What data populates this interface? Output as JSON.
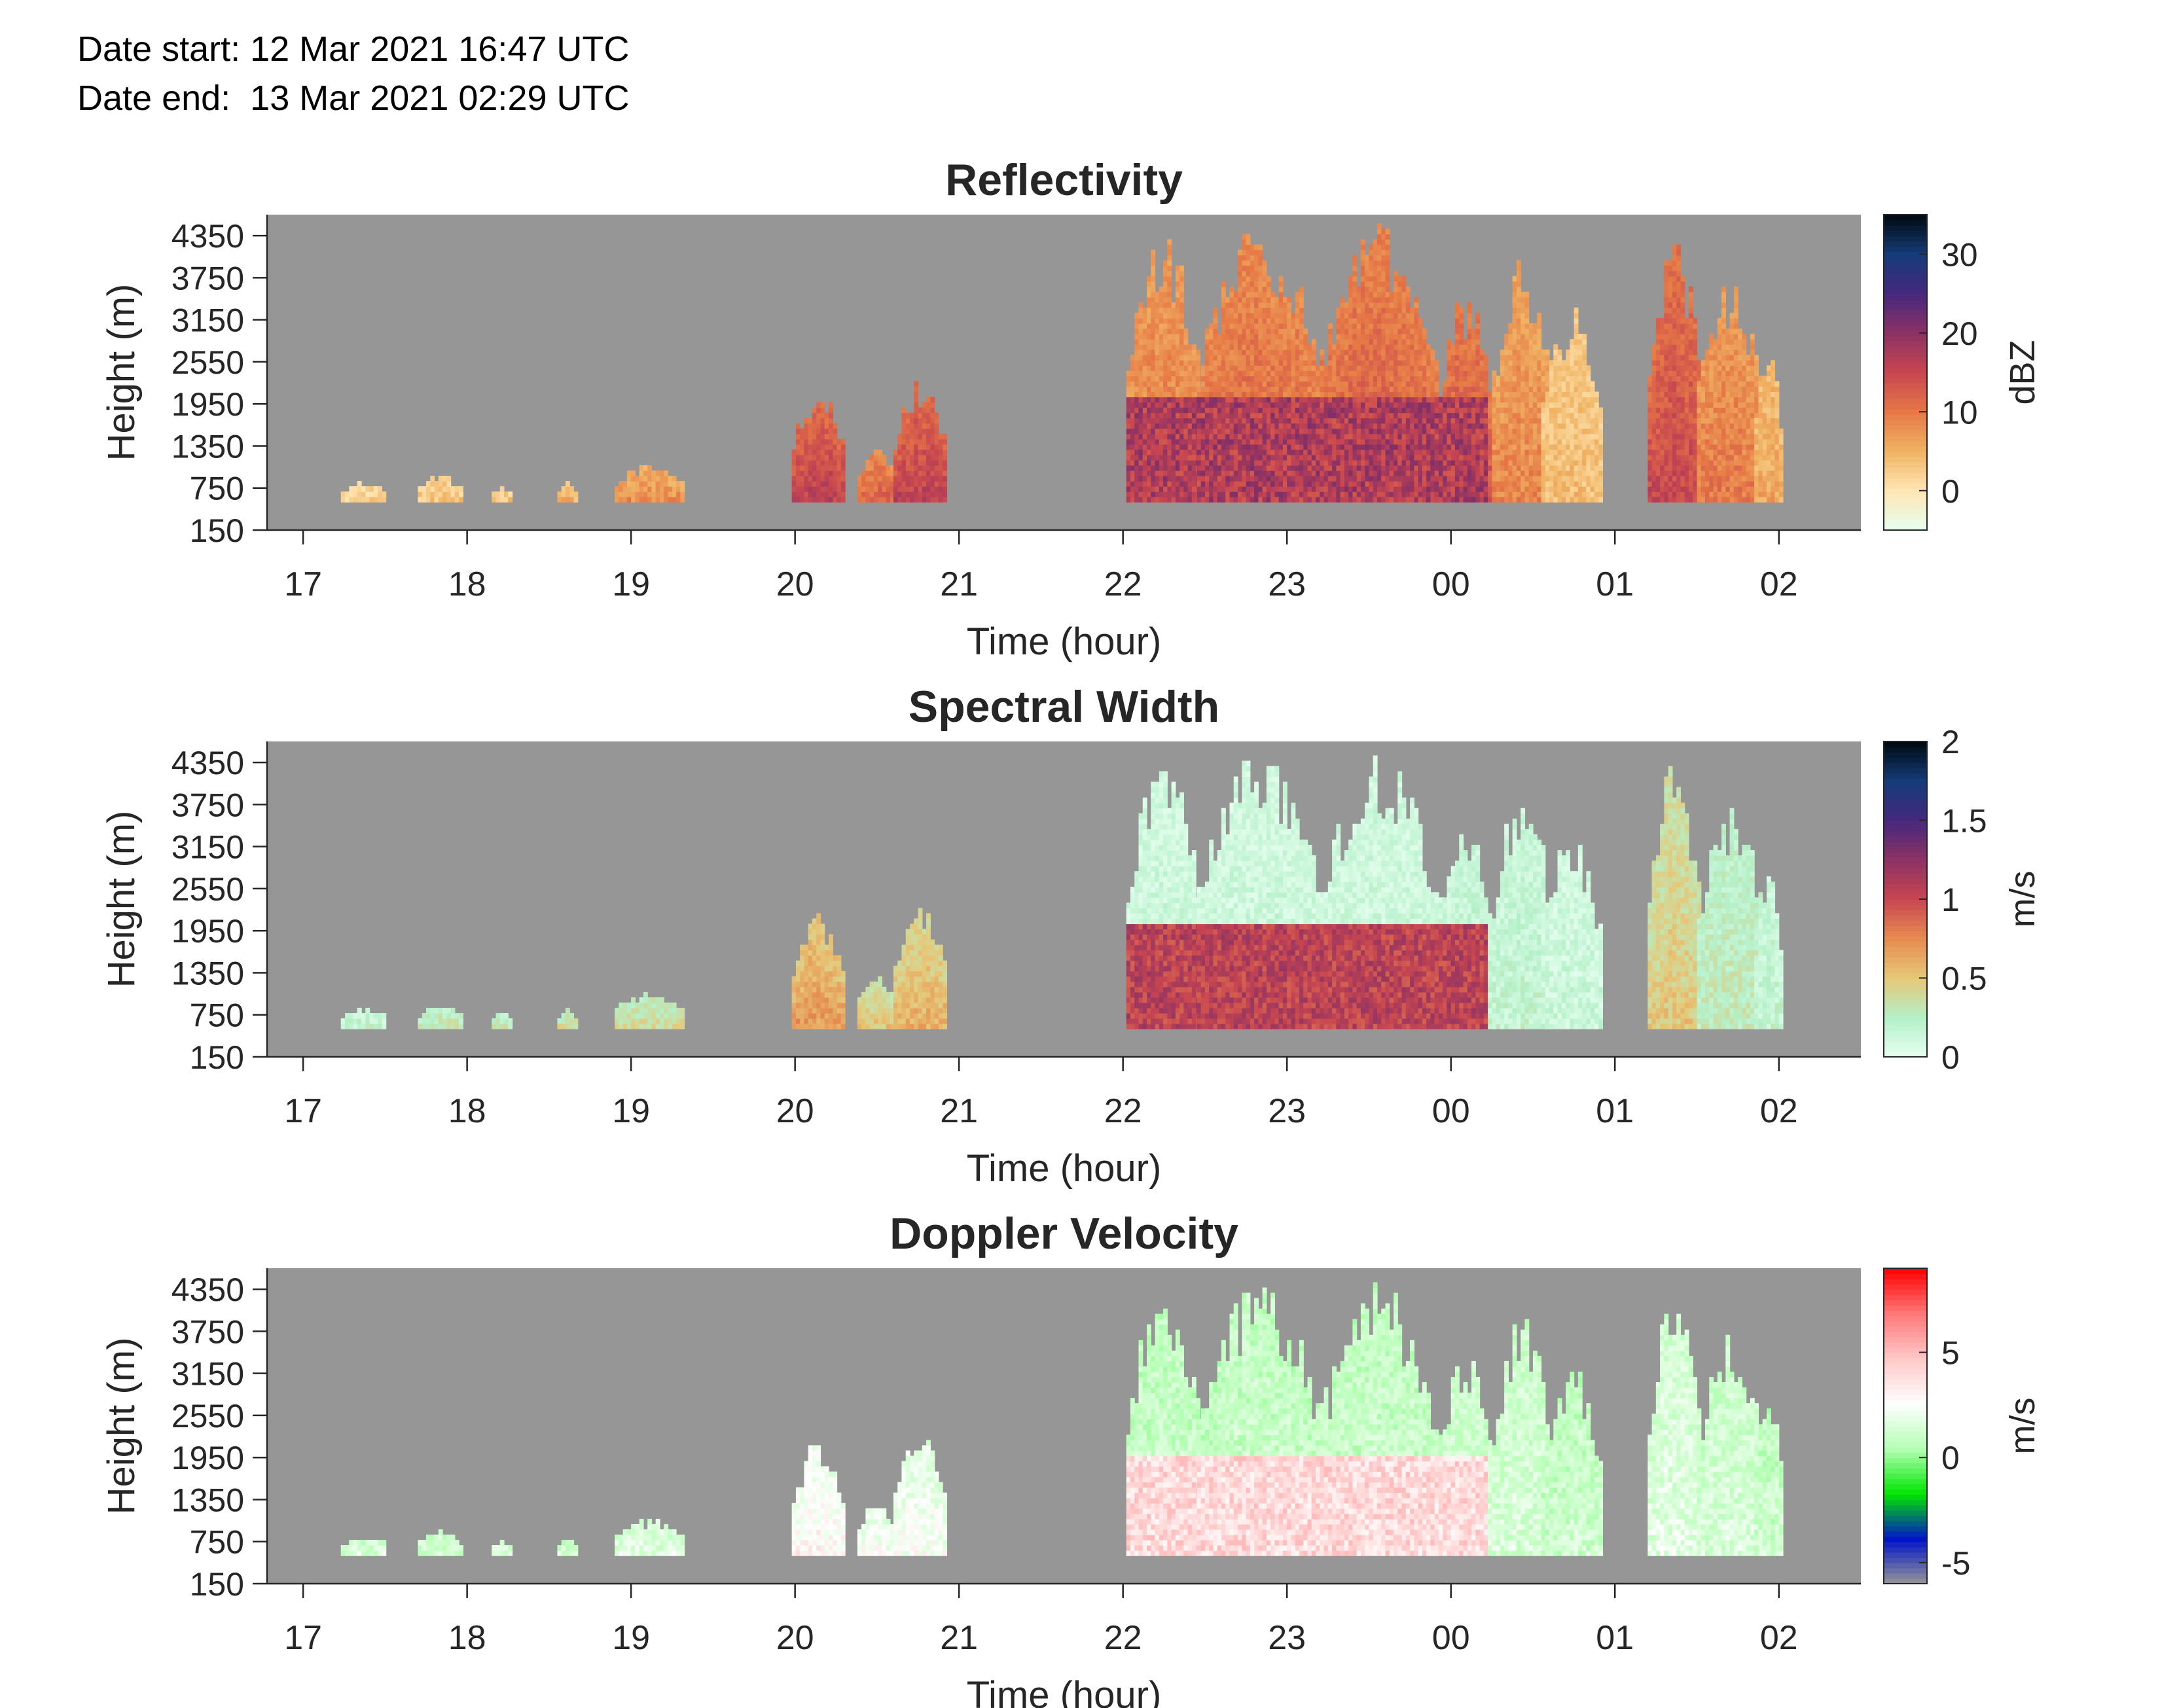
{
  "header": {
    "date_start": "Date start: 12 Mar 2021 16:47 UTC",
    "date_end": "Date end:  13 Mar 2021 02:29 UTC"
  },
  "chart_data": [
    {
      "type": "heatmap",
      "title": "Reflectivity",
      "xlabel": "Time (hour)",
      "ylabel": "Height (m)",
      "x_tick_labels": [
        "17",
        "18",
        "19",
        "20",
        "21",
        "22",
        "23",
        "00",
        "01",
        "02"
      ],
      "x_tick_hours": [
        17,
        18,
        19,
        20,
        21,
        22,
        23,
        24,
        25,
        26
      ],
      "xlim_hours": [
        16.78,
        26.5
      ],
      "y_tick_labels": [
        "150",
        "750",
        "1350",
        "1950",
        "2550",
        "3150",
        "3750",
        "4350"
      ],
      "y_ticks": [
        150,
        750,
        1350,
        1950,
        2550,
        3150,
        3750,
        4350
      ],
      "ylim": [
        150,
        4650
      ],
      "colorbar": {
        "label": "dBZ",
        "ticks": [
          0,
          10,
          20,
          30
        ],
        "tick_labels": [
          "0",
          "10",
          "20",
          "30"
        ],
        "range": [
          -5,
          35
        ],
        "colors": [
          "#e6fff0",
          "#ffe6b4",
          "#f0b464",
          "#e67846",
          "#c84650",
          "#8c3264",
          "#46287d",
          "#143c78",
          "#000a0f"
        ]
      },
      "background": "#969696",
      "echo_regions": [
        {
          "t0": 17.23,
          "t1": 17.5,
          "h_top": 800,
          "value": 2
        },
        {
          "t0": 17.7,
          "t1": 17.95,
          "h_top": 900,
          "value": 3
        },
        {
          "t0": 18.15,
          "t1": 18.25,
          "h_top": 750,
          "value": 3
        },
        {
          "t0": 18.55,
          "t1": 18.65,
          "h_top": 800,
          "value": 5
        },
        {
          "t0": 18.9,
          "t1": 19.3,
          "h_top": 1050,
          "value": 8
        },
        {
          "t0": 19.98,
          "t1": 20.28,
          "h_top": 2200,
          "value": 16
        },
        {
          "t0": 20.38,
          "t1": 20.6,
          "h_top": 1300,
          "value": 12
        },
        {
          "t0": 20.6,
          "t1": 20.9,
          "h_top": 2300,
          "value": 16
        },
        {
          "t0": 22.02,
          "t1": 22.45,
          "h_top": 4500,
          "value": 10
        },
        {
          "t0": 22.45,
          "t1": 23.2,
          "h_top": 4500,
          "value": 12
        },
        {
          "t0": 23.2,
          "t1": 23.9,
          "h_top": 4500,
          "value": 13
        },
        {
          "t0": 23.9,
          "t1": 24.25,
          "h_top": 3500,
          "value": 14
        },
        {
          "t0": 24.25,
          "t1": 24.6,
          "h_top": 4050,
          "value": 9
        },
        {
          "t0": 24.55,
          "t1": 24.9,
          "h_top": 3300,
          "value": 4
        },
        {
          "t0": 25.2,
          "t1": 25.5,
          "h_top": 4500,
          "value": 15
        },
        {
          "t0": 25.5,
          "t1": 25.9,
          "h_top": 3700,
          "value": 10
        },
        {
          "t0": 25.85,
          "t1": 26.0,
          "h_top": 2950,
          "value": 6
        }
      ]
    },
    {
      "type": "heatmap",
      "title": "Spectral Width",
      "xlabel": "Time (hour)",
      "ylabel": "Height (m)",
      "x_tick_labels": [
        "17",
        "18",
        "19",
        "20",
        "21",
        "22",
        "23",
        "00",
        "01",
        "02"
      ],
      "x_tick_hours": [
        17,
        18,
        19,
        20,
        21,
        22,
        23,
        24,
        25,
        26
      ],
      "xlim_hours": [
        16.78,
        26.5
      ],
      "y_tick_labels": [
        "150",
        "750",
        "1350",
        "1950",
        "2550",
        "3150",
        "3750",
        "4350"
      ],
      "y_ticks": [
        150,
        750,
        1350,
        1950,
        2550,
        3150,
        3750,
        4350
      ],
      "ylim": [
        150,
        4650
      ],
      "colorbar": {
        "label": "m/s",
        "ticks": [
          0,
          0.5,
          1,
          1.5,
          2
        ],
        "tick_labels": [
          "0",
          "0.5",
          "1",
          "1.5",
          "2"
        ],
        "range": [
          0,
          2
        ],
        "colors": [
          "#e6fff0",
          "#b4f0c8",
          "#e6c878",
          "#e68c50",
          "#c84650",
          "#8c3264",
          "#46287d",
          "#143c78",
          "#000a0f"
        ]
      },
      "background": "#969696",
      "echo_regions": [
        {
          "t0": 17.23,
          "t1": 17.5,
          "h_top": 800,
          "value": 0.2
        },
        {
          "t0": 17.7,
          "t1": 17.95,
          "h_top": 900,
          "value": 0.3
        },
        {
          "t0": 18.15,
          "t1": 18.25,
          "h_top": 750,
          "value": 0.3
        },
        {
          "t0": 18.55,
          "t1": 18.65,
          "h_top": 800,
          "value": 0.4
        },
        {
          "t0": 18.9,
          "t1": 19.3,
          "h_top": 1050,
          "value": 0.4
        },
        {
          "t0": 19.98,
          "t1": 20.28,
          "h_top": 2200,
          "value": 0.7
        },
        {
          "t0": 20.38,
          "t1": 20.6,
          "h_top": 1300,
          "value": 0.5
        },
        {
          "t0": 20.6,
          "t1": 20.9,
          "h_top": 2300,
          "value": 0.6
        },
        {
          "t0": 22.02,
          "t1": 22.45,
          "h_top": 4500,
          "value": 0.15
        },
        {
          "t0": 22.45,
          "t1": 23.2,
          "h_top": 4500,
          "value": 0.15
        },
        {
          "t0": 23.2,
          "t1": 23.9,
          "h_top": 4500,
          "value": 0.15
        },
        {
          "t0": 23.9,
          "t1": 24.25,
          "h_top": 3500,
          "value": 0.2
        },
        {
          "t0": 24.25,
          "t1": 24.6,
          "h_top": 4050,
          "value": 0.2
        },
        {
          "t0": 24.55,
          "t1": 24.9,
          "h_top": 3300,
          "value": 0.15
        },
        {
          "t0": 25.2,
          "t1": 25.5,
          "h_top": 4500,
          "value": 0.5
        },
        {
          "t0": 25.5,
          "t1": 25.9,
          "h_top": 3700,
          "value": 0.3
        },
        {
          "t0": 25.85,
          "t1": 26.0,
          "h_top": 2950,
          "value": 0.2
        }
      ],
      "low_layer": {
        "t0": 22.02,
        "t1": 24.2,
        "h_top": 2050,
        "value": 1.05
      }
    },
    {
      "type": "heatmap",
      "title": "Doppler Velocity",
      "xlabel": "Time (hour)",
      "ylabel": "Height (m)",
      "x_tick_labels": [
        "17",
        "18",
        "19",
        "20",
        "21",
        "22",
        "23",
        "00",
        "01",
        "02"
      ],
      "x_tick_hours": [
        17,
        18,
        19,
        20,
        21,
        22,
        23,
        24,
        25,
        26
      ],
      "xlim_hours": [
        16.78,
        26.5
      ],
      "y_tick_labels": [
        "150",
        "750",
        "1350",
        "1950",
        "2550",
        "3150",
        "3750",
        "4350"
      ],
      "y_ticks": [
        150,
        750,
        1350,
        1950,
        2550,
        3150,
        3750,
        4350
      ],
      "ylim": [
        150,
        4650
      ],
      "colorbar": {
        "label": "m/s",
        "ticks": [
          -5,
          0,
          5
        ],
        "tick_labels": [
          "-5",
          "0",
          "5"
        ],
        "range": [
          -6,
          9
        ],
        "colors": [
          "#969696",
          "#0014c8",
          "#00e600",
          "#b4ffb4",
          "#ffffff",
          "#ffc8c8",
          "#ff7878",
          "#ff0000"
        ]
      },
      "background": "#969696",
      "echo_regions": [
        {
          "t0": 17.23,
          "t1": 17.5,
          "h_top": 800,
          "value": 1.5
        },
        {
          "t0": 17.7,
          "t1": 17.95,
          "h_top": 900,
          "value": 1.5
        },
        {
          "t0": 18.15,
          "t1": 18.25,
          "h_top": 750,
          "value": 1.5
        },
        {
          "t0": 18.55,
          "t1": 18.65,
          "h_top": 800,
          "value": 1.5
        },
        {
          "t0": 18.9,
          "t1": 19.3,
          "h_top": 1050,
          "value": 1.8
        },
        {
          "t0": 19.98,
          "t1": 20.28,
          "h_top": 2200,
          "value": 3
        },
        {
          "t0": 20.38,
          "t1": 20.6,
          "h_top": 1300,
          "value": 2.5
        },
        {
          "t0": 20.6,
          "t1": 20.9,
          "h_top": 2300,
          "value": 2.5
        },
        {
          "t0": 22.02,
          "t1": 22.45,
          "h_top": 4500,
          "value": 1.2
        },
        {
          "t0": 22.45,
          "t1": 23.2,
          "h_top": 4500,
          "value": 1.2
        },
        {
          "t0": 23.2,
          "t1": 23.9,
          "h_top": 4500,
          "value": 1.2
        },
        {
          "t0": 23.9,
          "t1": 24.25,
          "h_top": 3500,
          "value": 1.5
        },
        {
          "t0": 24.25,
          "t1": 24.6,
          "h_top": 4050,
          "value": 1.5
        },
        {
          "t0": 24.55,
          "t1": 24.9,
          "h_top": 3300,
          "value": 1.2
        },
        {
          "t0": 25.2,
          "t1": 25.5,
          "h_top": 4500,
          "value": 1.8
        },
        {
          "t0": 25.5,
          "t1": 25.9,
          "h_top": 3700,
          "value": 1.5
        },
        {
          "t0": 25.85,
          "t1": 26.0,
          "h_top": 2950,
          "value": 1.2
        }
      ],
      "low_layer": {
        "t0": 22.02,
        "t1": 24.2,
        "h_top": 1950,
        "value": 4
      }
    }
  ]
}
